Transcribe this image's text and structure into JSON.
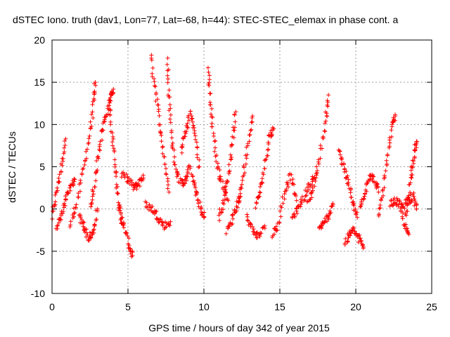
{
  "chart_data": {
    "type": "scatter",
    "title": "dSTEC Iono. truth (dav1, Lon=77, Lat=-68, h=44): STEC-STEC_elemax in phase cont. a",
    "xlabel": "GPS time / hours of day 342 of year 2015",
    "ylabel": "dSTEC  / TECUs",
    "xlim": [
      0,
      25
    ],
    "ylim": [
      -10,
      20
    ],
    "x_ticks": [
      0,
      5,
      10,
      15,
      20,
      25
    ],
    "y_ticks": [
      -10,
      -5,
      0,
      5,
      10,
      15,
      20
    ],
    "x_tick_labels": [
      "0",
      "5",
      "10",
      "15",
      "20",
      "25"
    ],
    "y_tick_labels": [
      "-10",
      "-5",
      "0",
      "5",
      "10",
      "15",
      "20"
    ],
    "grid": true,
    "marker": "plus",
    "color": "#ff0000",
    "arcs": [
      {
        "x": [
          0.0,
          0.3,
          0.6,
          0.9
        ],
        "y": [
          -1.0,
          2.0,
          5.0,
          8.3
        ]
      },
      {
        "x": [
          0.3,
          0.6,
          0.9,
          1.2,
          1.5
        ],
        "y": [
          -2.0,
          -1.0,
          1.0,
          2.5,
          3.5
        ]
      },
      {
        "x": [
          1.2,
          1.6,
          2.0,
          2.4,
          2.7,
          2.85
        ],
        "y": [
          -2.0,
          0.5,
          4.0,
          8.0,
          12.0,
          15.0
        ]
      },
      {
        "x": [
          1.8,
          2.1,
          2.4,
          2.7,
          3.0
        ],
        "y": [
          -1.0,
          -2.0,
          -3.5,
          -3.0,
          0.0
        ]
      },
      {
        "x": [
          2.5,
          2.8,
          3.1,
          3.4,
          3.7,
          3.9,
          4.0
        ],
        "y": [
          0.0,
          3.0,
          7.0,
          10.0,
          12.0,
          13.5,
          13.8
        ]
      },
      {
        "x": [
          3.8,
          4.0,
          4.2,
          4.4,
          4.6
        ],
        "y": [
          12.0,
          8.0,
          4.0,
          0.5,
          -1.0
        ]
      },
      {
        "x": [
          4.5,
          4.8,
          5.1,
          5.3
        ],
        "y": [
          -1.0,
          -2.5,
          -4.5,
          -5.5
        ]
      },
      {
        "x": [
          4.6,
          5.0,
          5.4,
          5.7,
          6.0
        ],
        "y": [
          4.0,
          3.5,
          2.5,
          3.0,
          4.0
        ]
      },
      {
        "x": [
          6.5,
          6.8,
          7.1,
          7.4,
          7.7
        ],
        "y": [
          18.0,
          14.0,
          10.0,
          6.0,
          2.0
        ]
      },
      {
        "x": [
          6.2,
          6.6,
          7.0,
          7.4,
          7.8
        ],
        "y": [
          0.5,
          0.0,
          -1.0,
          -2.0,
          -1.5
        ]
      },
      {
        "x": [
          7.6,
          7.7,
          7.9,
          8.2,
          8.5,
          8.8,
          9.1
        ],
        "y": [
          17.5,
          13.0,
          8.0,
          4.5,
          3.0,
          3.5,
          5.0
        ]
      },
      {
        "x": [
          8.5,
          8.8,
          9.1,
          9.4,
          9.7
        ],
        "y": [
          7.0,
          9.0,
          11.5,
          9.0,
          5.0
        ]
      },
      {
        "x": [
          9.2,
          9.5,
          9.8,
          10.0
        ],
        "y": [
          4.0,
          2.0,
          0.0,
          -1.0
        ]
      },
      {
        "x": [
          10.3,
          10.4,
          10.6,
          10.9,
          11.2,
          11.6
        ],
        "y": [
          16.5,
          13.0,
          9.0,
          5.0,
          3.0,
          1.0
        ]
      },
      {
        "x": [
          11.0,
          11.3,
          11.6,
          11.9,
          12.1
        ],
        "y": [
          -1.0,
          1.0,
          4.0,
          8.0,
          11.5
        ]
      },
      {
        "x": [
          11.5,
          11.8,
          12.1,
          12.4
        ],
        "y": [
          -2.5,
          -1.5,
          0.0,
          1.5
        ]
      },
      {
        "x": [
          12.3,
          12.6,
          12.9,
          13.2
        ],
        "y": [
          1.0,
          4.0,
          8.0,
          11.0
        ]
      },
      {
        "x": [
          12.8,
          13.2,
          13.6,
          14.0
        ],
        "y": [
          -1.0,
          -2.5,
          -3.3,
          -2.0
        ]
      },
      {
        "x": [
          13.4,
          13.7,
          14.0,
          14.3,
          14.6
        ],
        "y": [
          0.5,
          2.0,
          5.0,
          8.5,
          9.5
        ]
      },
      {
        "x": [
          14.5,
          14.9,
          15.3,
          15.7,
          16.1
        ],
        "y": [
          -3.0,
          -2.0,
          2.0,
          4.0,
          1.0
        ]
      },
      {
        "x": [
          15.8,
          16.2,
          16.6,
          17.0,
          17.4
        ],
        "y": [
          -1.0,
          0.0,
          1.5,
          3.0,
          4.0
        ]
      },
      {
        "x": [
          16.8,
          17.2,
          17.6,
          18.0,
          18.2
        ],
        "y": [
          0.5,
          2.5,
          6.0,
          10.0,
          13.5
        ]
      },
      {
        "x": [
          17.6,
          17.9,
          18.2,
          18.5
        ],
        "y": [
          -2.5,
          -1.5,
          -1.0,
          0.5
        ]
      },
      {
        "x": [
          18.9,
          19.2,
          19.5,
          19.8,
          20.1
        ],
        "y": [
          7.0,
          5.0,
          3.0,
          1.0,
          -1.0
        ]
      },
      {
        "x": [
          19.3,
          19.6,
          19.9,
          20.2,
          20.5
        ],
        "y": [
          -4.0,
          -3.0,
          -2.5,
          -3.5,
          -4.5
        ]
      },
      {
        "x": [
          20.3,
          20.6,
          20.9,
          21.2,
          21.5
        ],
        "y": [
          0.0,
          2.0,
          4.0,
          3.5,
          2.0
        ]
      },
      {
        "x": [
          21.5,
          21.8,
          22.1,
          22.4,
          22.6
        ],
        "y": [
          -1.0,
          2.0,
          6.0,
          10.0,
          11.0
        ]
      },
      {
        "x": [
          22.3,
          22.6,
          22.9,
          23.2,
          23.5
        ],
        "y": [
          0.5,
          1.0,
          0.5,
          -2.0,
          -3.0
        ]
      },
      {
        "x": [
          23.3,
          23.5,
          23.7,
          23.9,
          24.0
        ],
        "y": [
          -1.0,
          2.0,
          5.0,
          7.0,
          8.0
        ]
      },
      {
        "x": [
          23.0,
          23.4,
          23.8,
          24.0
        ],
        "y": [
          0.0,
          1.0,
          1.5,
          0.0
        ]
      }
    ]
  }
}
